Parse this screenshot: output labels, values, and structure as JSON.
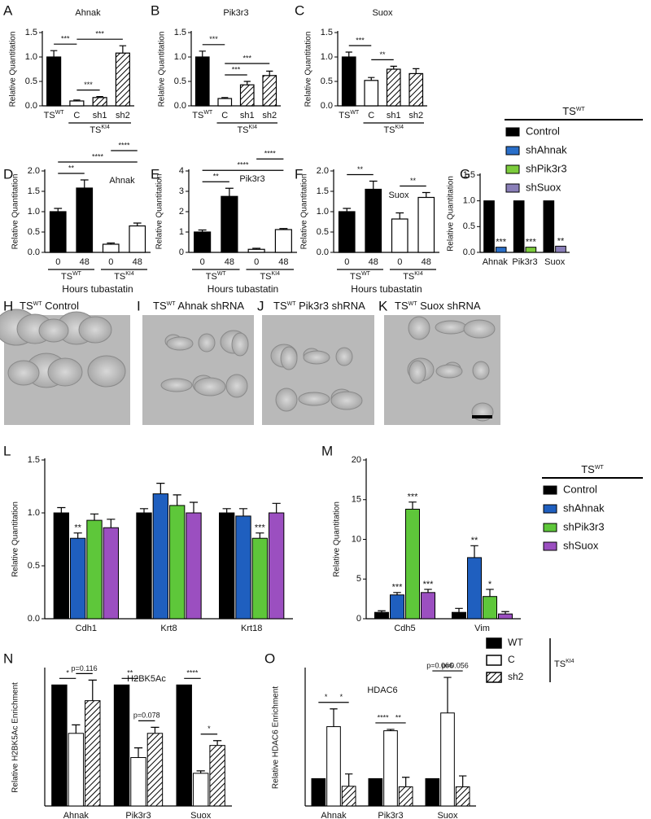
{
  "chart_data": [
    {
      "type": "bar",
      "panel": "A",
      "title": "Ahnak",
      "ylabel": "Relative Quantitation",
      "categories": [
        "TSWT",
        "C",
        "sh1",
        "sh2"
      ],
      "values": [
        1.0,
        0.1,
        0.17,
        1.08
      ],
      "errors": [
        0.13,
        0.02,
        0.02,
        0.15
      ],
      "fills": [
        "#000000",
        "#ffffff",
        "hatch",
        "hatch"
      ],
      "groups": [
        {
          "label": "TSKI4",
          "from": 1,
          "to": 3
        }
      ],
      "brackets": [
        {
          "text": "***",
          "from": 0,
          "to": 1
        },
        {
          "text": "***",
          "from": 1,
          "to": 2
        },
        {
          "text": "***",
          "from": 1,
          "to": 3
        }
      ],
      "ylim": [
        0,
        1.5
      ],
      "yticks": [
        {
          "value": 0,
          "label": "0.0"
        },
        0.5,
        {
          "value": 1,
          "label": "1.0"
        },
        1.5
      ]
    },
    {
      "type": "bar",
      "panel": "B",
      "title": "Pik3r3",
      "ylabel": "Relative Quantitation",
      "categories": [
        "TSWT",
        "C",
        "sh1",
        "sh2"
      ],
      "values": [
        1.0,
        0.15,
        0.43,
        0.62
      ],
      "errors": [
        0.12,
        0.02,
        0.07,
        0.09
      ],
      "fills": [
        "#000000",
        "#ffffff",
        "hatch",
        "hatch"
      ],
      "groups": [
        {
          "label": "TSKI4",
          "from": 1,
          "to": 3
        }
      ],
      "brackets": [
        {
          "text": "***",
          "from": 0,
          "to": 1
        },
        {
          "text": "***",
          "from": 1,
          "to": 2
        },
        {
          "text": "***",
          "from": 1,
          "to": 3
        }
      ],
      "ylim": [
        0,
        1.5
      ],
      "yticks": [
        {
          "value": 0,
          "label": "0.0"
        },
        0.5,
        {
          "value": 1,
          "label": "1.0"
        },
        1.5
      ]
    },
    {
      "type": "bar",
      "panel": "C",
      "title": "Suox",
      "ylabel": "Relative Quantitation",
      "categories": [
        "TSWT",
        "C",
        "sh1",
        "sh2"
      ],
      "values": [
        1.0,
        0.52,
        0.75,
        0.66
      ],
      "errors": [
        0.1,
        0.06,
        0.06,
        0.1
      ],
      "fills": [
        "#000000",
        "#ffffff",
        "hatch",
        "hatch"
      ],
      "groups": [
        {
          "label": "TSKI4",
          "from": 1,
          "to": 3
        }
      ],
      "brackets": [
        {
          "text": "***",
          "from": 0,
          "to": 1
        },
        {
          "text": "**",
          "from": 1,
          "to": 2
        }
      ],
      "ylim": [
        0,
        1.5
      ],
      "yticks": [
        {
          "value": 0,
          "label": "0.0"
        },
        0.5,
        {
          "value": 1,
          "label": "1.0"
        },
        1.5
      ]
    },
    {
      "type": "bar",
      "panel": "D",
      "title": "Ahnak",
      "ylabel": "Relative Quantitation",
      "xlabel": "Hours tubastatin",
      "categories": [
        "0",
        "48",
        "0",
        "48"
      ],
      "values": [
        1.0,
        1.58,
        0.2,
        0.65
      ],
      "errors": [
        0.08,
        0.2,
        0.03,
        0.07
      ],
      "fills": [
        "#000000",
        "#000000",
        "#ffffff",
        "#ffffff"
      ],
      "groups": [
        {
          "label": "TSWT",
          "from": 0,
          "to": 1
        },
        {
          "label": "TSKI4",
          "from": 2,
          "to": 3
        }
      ],
      "brackets": [
        {
          "text": "**",
          "from": 0,
          "to": 1
        },
        {
          "text": "****",
          "from": 0,
          "to": 3
        },
        {
          "text": "****",
          "from": 2,
          "to": 3
        }
      ],
      "ylim": [
        0,
        2
      ],
      "yticks": [
        {
          "value": 0,
          "label": "0.0"
        },
        0.5,
        {
          "value": 1,
          "label": "1.0"
        },
        1.5,
        {
          "value": 2,
          "label": "2.0"
        }
      ]
    },
    {
      "type": "bar",
      "panel": "E",
      "title": "Pik3r3",
      "ylabel": "Relative Quantitation",
      "xlabel": "Hours tubastatin",
      "categories": [
        "0",
        "48",
        "0",
        "48"
      ],
      "values": [
        1.0,
        2.75,
        0.15,
        1.12
      ],
      "errors": [
        0.1,
        0.4,
        0.05,
        0.05
      ],
      "fills": [
        "#000000",
        "#000000",
        "#ffffff",
        "#ffffff"
      ],
      "groups": [
        {
          "label": "TSWT",
          "from": 0,
          "to": 1
        },
        {
          "label": "TSKI4",
          "from": 2,
          "to": 3
        }
      ],
      "brackets": [
        {
          "text": "**",
          "from": 0,
          "to": 1
        },
        {
          "text": "****",
          "from": 0,
          "to": 3
        },
        {
          "text": "****",
          "from": 2,
          "to": 3
        }
      ],
      "ylim": [
        0,
        4
      ],
      "yticks": [
        0,
        1,
        2,
        3,
        4
      ]
    },
    {
      "type": "bar",
      "panel": "F",
      "title": "Suox",
      "ylabel": "Relative Quantitation",
      "xlabel": "Hours tubastatin",
      "categories": [
        "0",
        "48",
        "0",
        "48"
      ],
      "values": [
        1.0,
        1.55,
        0.82,
        1.35
      ],
      "errors": [
        0.08,
        0.2,
        0.15,
        0.12
      ],
      "fills": [
        "#000000",
        "#000000",
        "#ffffff",
        "#ffffff"
      ],
      "groups": [
        {
          "label": "TSWT",
          "from": 0,
          "to": 1
        },
        {
          "label": "TSKI4",
          "from": 2,
          "to": 3
        }
      ],
      "brackets": [
        {
          "text": "**",
          "from": 0,
          "to": 1
        },
        {
          "text": "**",
          "from": 2,
          "to": 3
        }
      ],
      "ylim": [
        0,
        2
      ],
      "yticks": [
        {
          "value": 0,
          "label": "0.0"
        },
        0.5,
        {
          "value": 1,
          "label": "1.0"
        },
        1.5,
        {
          "value": 2,
          "label": "2.0"
        }
      ]
    },
    {
      "type": "grouped-bar",
      "panel": "G",
      "ylabel": "Relative Quantitation",
      "categories": [
        "Ahnak",
        "Pik3r3",
        "Suox"
      ],
      "legend": true,
      "legend_title": "TSWT",
      "series": [
        {
          "name": "Control",
          "color": "#000000",
          "values": [
            1,
            1,
            1
          ]
        },
        {
          "name": "shAhnak",
          "color": "#2a6fc9",
          "values": [
            0.1,
            null,
            null
          ],
          "stars": [
            "***",
            null,
            null
          ]
        },
        {
          "name": "shPik3r3",
          "color": "#7ccc3c",
          "values": [
            null,
            0.1,
            null
          ],
          "stars": [
            null,
            "***",
            null
          ]
        },
        {
          "name": "shSuox",
          "color": "#8a7fb8",
          "values": [
            null,
            null,
            0.12
          ],
          "stars": [
            null,
            null,
            "**"
          ]
        }
      ],
      "ylim": [
        0,
        1.5
      ],
      "yticks": [
        {
          "value": 0,
          "label": "0.0"
        },
        0.5,
        {
          "value": 1,
          "label": "1.0"
        },
        1.5
      ]
    },
    {
      "type": "grouped-bar",
      "panel": "L",
      "ylabel": "Relative Quantitation",
      "categories": [
        "Cdh1",
        "Krt8",
        "Krt18"
      ],
      "series": [
        {
          "color": "#000000",
          "values": [
            1,
            1,
            1
          ],
          "errors": [
            0.05,
            0.04,
            0.04
          ]
        },
        {
          "color": "#1f5fbf",
          "values": [
            0.76,
            1.18,
            0.97
          ],
          "errors": [
            0.05,
            0.1,
            0.07
          ],
          "stars": [
            "**",
            null,
            null
          ]
        },
        {
          "color": "#5ec73a",
          "values": [
            0.93,
            1.07,
            0.76
          ],
          "errors": [
            0.06,
            0.1,
            0.05
          ],
          "stars": [
            null,
            null,
            "***"
          ]
        },
        {
          "color": "#9b4fc0",
          "values": [
            0.86,
            1.0,
            1.0
          ],
          "errors": [
            0.08,
            0.1,
            0.09
          ]
        }
      ],
      "ylim": [
        0,
        1.5
      ],
      "yticks": [
        {
          "value": 0,
          "label": "0.0"
        },
        0.5,
        {
          "value": 1,
          "label": "1.0"
        },
        1.5
      ]
    },
    {
      "type": "grouped-bar",
      "panel": "M",
      "ylabel": "Relative Quantitation",
      "categories": [
        "Cdh5",
        "Vim"
      ],
      "legend": true,
      "legend_title": "TSWT",
      "series": [
        {
          "name": "Control",
          "color": "#000000",
          "values": [
            0.8,
            0.8
          ],
          "errors": [
            0.2,
            0.5
          ]
        },
        {
          "name": "shAhnak",
          "color": "#1f5fbf",
          "values": [
            3.0,
            7.7
          ],
          "errors": [
            0.3,
            1.5
          ],
          "stars": [
            "***",
            "**"
          ]
        },
        {
          "name": "shPik3r3",
          "color": "#5ec73a",
          "values": [
            13.8,
            2.8
          ],
          "errors": [
            0.9,
            0.9
          ],
          "stars": [
            "***",
            "*"
          ]
        },
        {
          "name": "shSuox",
          "color": "#9b4fc0",
          "values": [
            3.3,
            0.6
          ],
          "errors": [
            0.4,
            0.3
          ],
          "stars": [
            "***",
            null
          ]
        }
      ],
      "ylim": [
        0,
        20
      ],
      "yticks": [
        0,
        5,
        10,
        15,
        20
      ]
    },
    {
      "type": "grouped-bar",
      "panel": "N",
      "title": "H2BK5Ac",
      "ylabel": "Relative H2BK5Ac Enrichment",
      "categories": [
        "Ahnak",
        "Pik3r3",
        "Suox"
      ],
      "series": [
        {
          "color": "#000000",
          "values": [
            1,
            1,
            1
          ]
        },
        {
          "color": "#ffffff",
          "values": [
            0.6,
            0.4,
            0.27
          ],
          "errors": [
            0.07,
            0.08,
            0.02
          ]
        },
        {
          "color": "#000000",
          "pattern": "hatch",
          "values": [
            0.87,
            0.6,
            0.5
          ],
          "errors": [
            0.17,
            0.05,
            0.04
          ]
        }
      ],
      "brackets": [
        {
          "text": "*",
          "from": [
            0,
            0
          ],
          "to": [
            0,
            1
          ]
        },
        {
          "text": "p=0.116",
          "from": [
            0,
            1
          ],
          "to": [
            0,
            2
          ]
        },
        {
          "text": "**",
          "from": [
            1,
            0
          ],
          "to": [
            1,
            1
          ]
        },
        {
          "text": "p=0.078",
          "from": [
            1,
            1
          ],
          "to": [
            1,
            2
          ]
        },
        {
          "text": "****",
          "from": [
            2,
            0
          ],
          "to": [
            2,
            1
          ]
        },
        {
          "text": "*",
          "from": [
            2,
            1
          ],
          "to": [
            2,
            2
          ]
        }
      ],
      "ylim": [
        0,
        1.13
      ]
    },
    {
      "type": "grouped-bar",
      "panel": "O",
      "title": "HDAC6",
      "ylabel": "Relative HDAC6 Enrichment",
      "categories": [
        "Ahnak",
        "Pik3r3",
        "Suox"
      ],
      "legend": true,
      "legend_title": "TSKI4",
      "series": [
        {
          "name": "WT",
          "color": "#000000",
          "values": [
            1,
            1,
            1
          ]
        },
        {
          "name": "C",
          "color": "#ffffff",
          "values": [
            2.9,
            2.75,
            3.4
          ],
          "errors": [
            0.65,
            0.05,
            1.3
          ]
        },
        {
          "name": "sh2",
          "color": "#000000",
          "pattern": "hatch",
          "values": [
            0.72,
            0.7,
            0.7
          ],
          "errors": [
            0.45,
            0.35,
            0.4
          ]
        }
      ],
      "brackets": [
        {
          "text": "*",
          "from": [
            0,
            0
          ],
          "to": [
            0,
            1
          ]
        },
        {
          "text": "*",
          "from": [
            0,
            1
          ],
          "to": [
            0,
            2
          ]
        },
        {
          "text": "****",
          "from": [
            1,
            0
          ],
          "to": [
            1,
            1
          ]
        },
        {
          "text": "**",
          "from": [
            1,
            1
          ],
          "to": [
            1,
            2
          ]
        },
        {
          "text": "p=0.066",
          "from": [
            2,
            0
          ],
          "to": [
            2,
            1
          ]
        },
        {
          "text": "p=0.056",
          "from": [
            2,
            1
          ],
          "to": [
            2,
            2
          ]
        }
      ],
      "ylim": [
        0,
        5
      ]
    }
  ],
  "images": [
    {
      "panel": "H",
      "caption": "TSWT Control"
    },
    {
      "panel": "I",
      "caption": "TSWT Ahnak shRNA"
    },
    {
      "panel": "J",
      "caption": "TSWT Pik3r3 shRNA"
    },
    {
      "panel": "K",
      "caption": "TSWT Suox shRNA"
    }
  ]
}
